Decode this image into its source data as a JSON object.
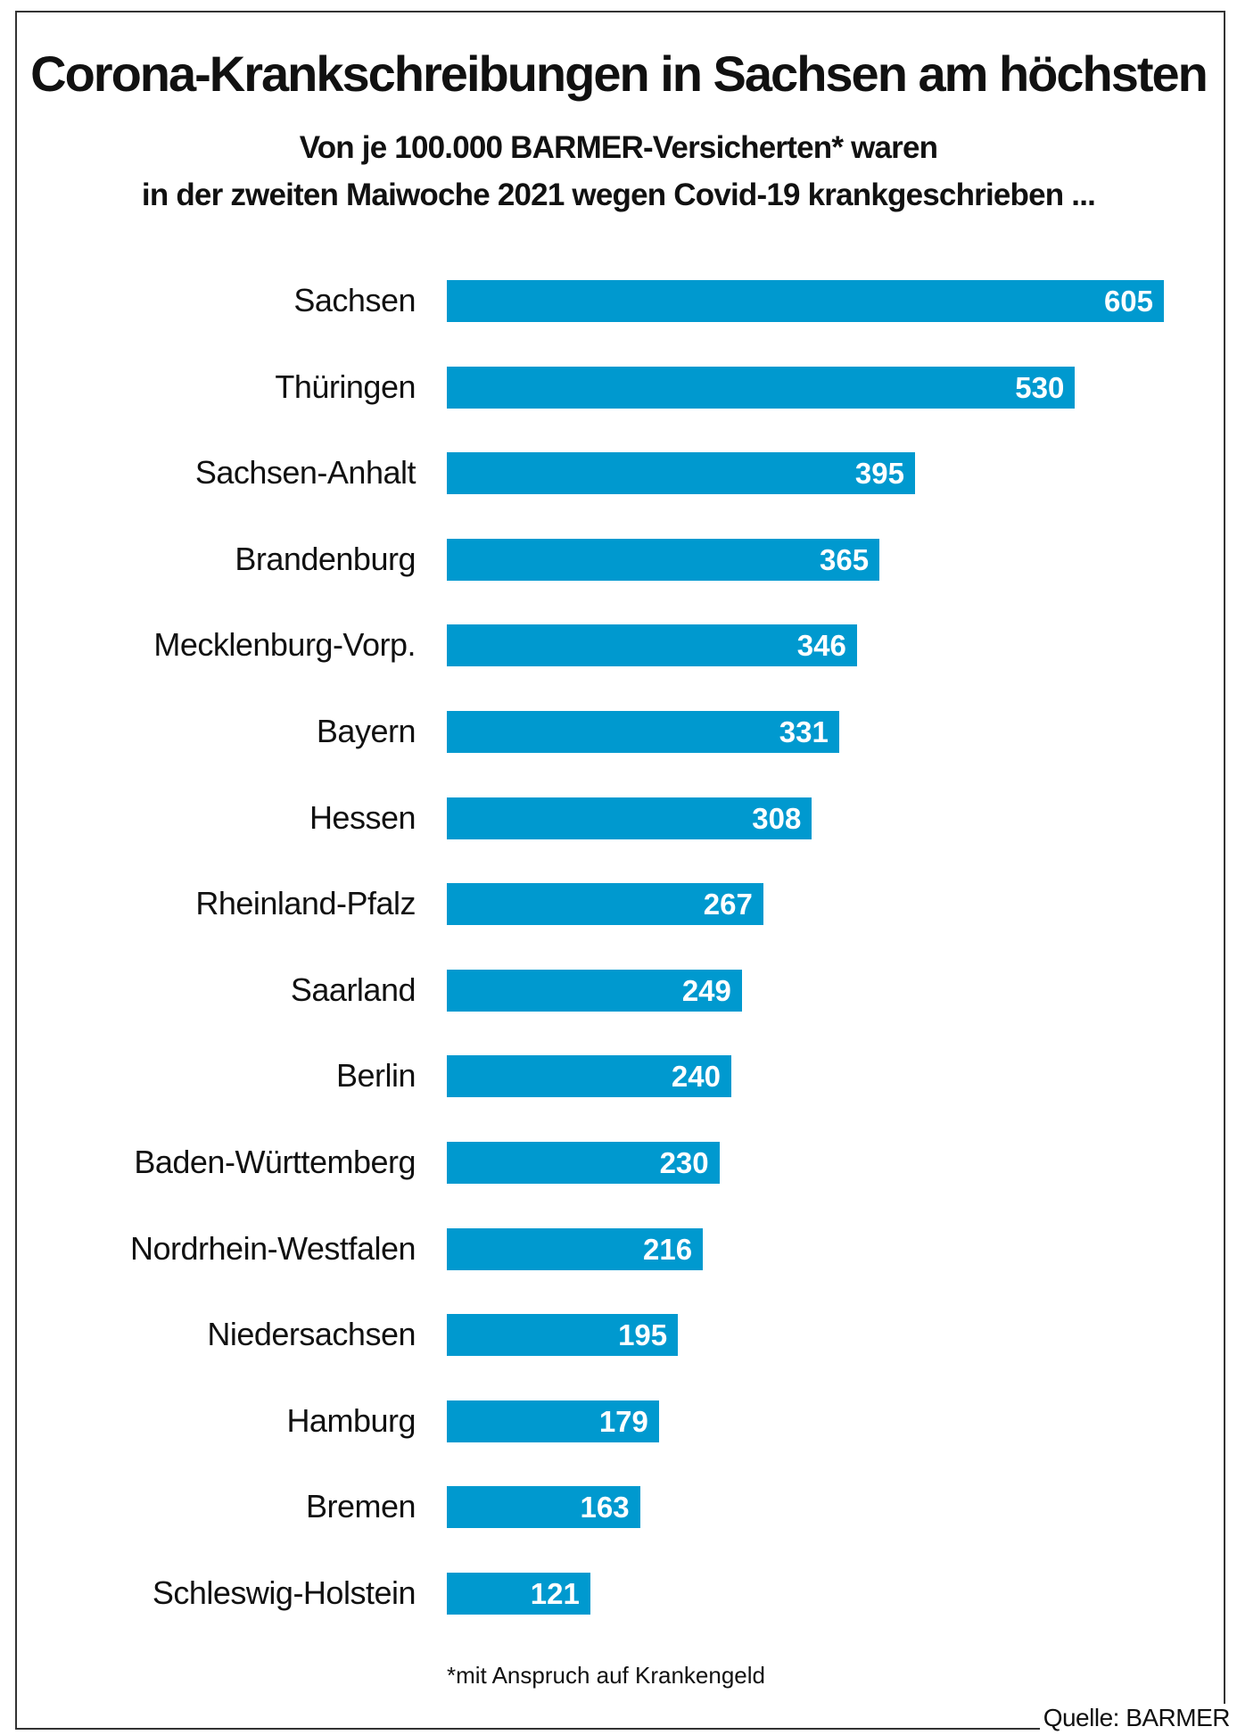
{
  "chart_data": {
    "type": "bar",
    "orientation": "horizontal",
    "title": "Corona-Krankschreibungen in Sachsen am höchsten",
    "subtitle": [
      "Von je 100.000 BARMER-Versicherten* waren",
      "in der zweiten Maiwoche 2021 wegen Covid-19 krankgeschrieben ..."
    ],
    "categories": [
      "Sachsen",
      "Thüringen",
      "Sachsen-Anhalt",
      "Brandenburg",
      "Mecklenburg-Vorp.",
      "Bayern",
      "Hessen",
      "Rheinland-Pfalz",
      "Saarland",
      "Berlin",
      "Baden-Württemberg",
      "Nordrhein-Westfalen",
      "Niedersachsen",
      "Hamburg",
      "Bremen",
      "Schleswig-Holstein"
    ],
    "values": [
      605,
      530,
      395,
      365,
      346,
      331,
      308,
      267,
      249,
      240,
      230,
      216,
      195,
      179,
      163,
      121
    ],
    "xlim": [
      0,
      605
    ],
    "grid": false,
    "footnote": "*mit Anspruch auf Krankengeld",
    "source": "Quelle: BARMER",
    "bar_color": "#0099cf"
  }
}
